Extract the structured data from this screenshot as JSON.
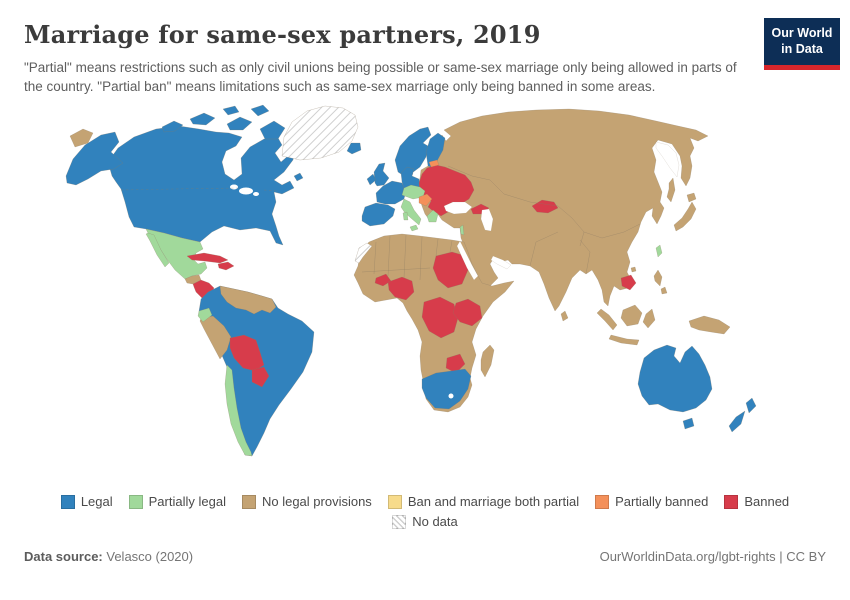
{
  "header": {
    "title": "Marriage for same-sex partners, 2019",
    "logo": {
      "line1": "Our World",
      "line2": "in Data",
      "bg_color": "#0d2e56",
      "accent_color": "#d7262c"
    }
  },
  "subtitle": "\"Partial\" means restrictions such as only civil unions being possible or same-sex marriage only being allowed in parts of the country. \"Partial ban\" means limitations such as same-sex marriage only being banned in some areas.",
  "legend": {
    "items": [
      {
        "key": "legal",
        "label": "Legal",
        "color": "#3182bd"
      },
      {
        "key": "partially_legal",
        "label": "Partially legal",
        "color": "#a1d99b"
      },
      {
        "key": "no_legal_provisions",
        "label": "No legal provisions",
        "color": "#c4a373"
      },
      {
        "key": "ban_marriage_partial",
        "label": "Ban and marriage both partial",
        "color": "#f7db8b"
      },
      {
        "key": "partially_banned",
        "label": "Partially banned",
        "color": "#f4905a"
      },
      {
        "key": "banned",
        "label": "Banned",
        "color": "#d73c4b"
      },
      {
        "key": "no_data",
        "label": "No data",
        "color": "#ffffff",
        "hatch": true
      }
    ]
  },
  "map": {
    "colors": {
      "legal": "#3182bd",
      "partially_legal": "#a1d99b",
      "no_legal_provisions": "#c4a373",
      "ban_marriage_partial": "#f7db8b",
      "partially_banned": "#f4905a",
      "banned": "#d73c4b",
      "no_data": "#ffffff"
    }
  },
  "chart_data": {
    "type": "choropleth",
    "title": "Marriage for same-sex partners, 2019",
    "year": 2019,
    "categories": [
      "Legal",
      "Partially legal",
      "No legal provisions",
      "Ban and marriage both partial",
      "Partially banned",
      "Banned",
      "No data"
    ],
    "legend_position": "bottom-center",
    "regions_by_category": {
      "Legal": [
        "Canada",
        "United States",
        "Colombia",
        "Brazil",
        "Argentina",
        "Uruguay",
        "Iceland",
        "United Kingdom",
        "Ireland",
        "France",
        "Spain",
        "Portugal",
        "Germany",
        "Benelux",
        "Denmark",
        "Norway",
        "Sweden",
        "Finland",
        "South Africa",
        "Australia",
        "New Zealand"
      ],
      "Partially legal": [
        "Mexico",
        "Ecuador",
        "Chile",
        "Switzerland",
        "Austria",
        "Czechia",
        "Italy",
        "Greece",
        "Israel",
        "Taiwan"
      ],
      "No legal provisions": [
        "Russia",
        "China",
        "India",
        "Japan",
        "Turkey",
        "Iran",
        "Saudi Arabia",
        "Indonesia",
        "most of Africa",
        "Central Asia",
        "Peru",
        "Venezuela",
        "Guyana",
        "Guatemala",
        "Panama",
        "Papua New Guinea",
        "Madagascar"
      ],
      "Ban and marriage both partial": [],
      "Partially banned": [
        "Estonia",
        "Croatia/Hungary area"
      ],
      "Banned": [
        "Honduras",
        "Nicaragua",
        "Cuba",
        "Haiti",
        "Dominican Republic",
        "Bolivia",
        "Paraguay",
        "Poland",
        "Lithuania",
        "Latvia",
        "Belarus",
        "Ukraine",
        "Romania",
        "Bulgaria",
        "Serbia",
        "Moldova",
        "Georgia",
        "Armenia",
        "Azerbaijan",
        "Burkina Faso",
        "Nigeria",
        "Sudan",
        "DR Congo",
        "Uganda",
        "Kenya",
        "Zimbabwe",
        "Kyrgyzstan",
        "Cambodia"
      ],
      "No data": [
        "Greenland",
        "Western Sahara"
      ]
    }
  },
  "footer": {
    "source_label": "Data source:",
    "source_value": "Velasco (2020)",
    "url": "OurWorldinData.org/lgbt-rights",
    "separator": " | ",
    "license": "CC BY"
  }
}
